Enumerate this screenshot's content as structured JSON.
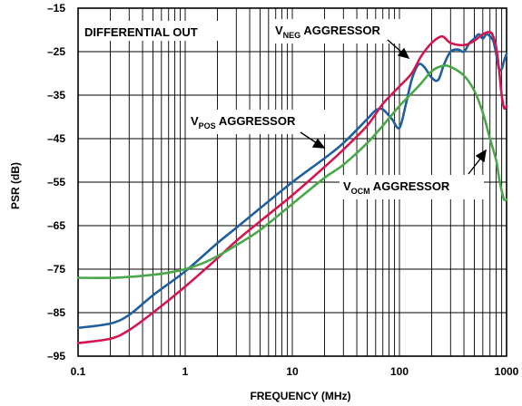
{
  "chart_data": {
    "type": "line",
    "xlabel": "FREQUENCY (MHz)",
    "ylabel": "PSR (dB)",
    "x_scale": "log",
    "xlim": [
      0.1,
      1000
    ],
    "ylim": [
      -95,
      -15
    ],
    "x_ticks": [
      "0.1",
      "1",
      "10",
      "100",
      "1000"
    ],
    "y_ticks": [
      "–15",
      "–25",
      "–35",
      "–45",
      "–55",
      "–65",
      "–75",
      "–85",
      "–95"
    ],
    "grid": true,
    "annotations": {
      "differential": "DIFFERENTIAL OUT",
      "neg": {
        "main": "V",
        "sub": "NEG",
        "rest": " AGGRESSOR"
      },
      "pos": {
        "main": "V",
        "sub": "POS",
        "rest": " AGGRESSOR"
      },
      "ocm": {
        "main": "V",
        "sub": "OCM",
        "rest": " AGGRESSOR"
      }
    },
    "series": [
      {
        "color": "#1f5fa0",
        "points": [
          [
            0.1,
            -88.5
          ],
          [
            0.2,
            -87.5
          ],
          [
            0.3,
            -85.5
          ],
          [
            0.5,
            -81
          ],
          [
            1,
            -75.5
          ],
          [
            2,
            -69
          ],
          [
            3,
            -65.5
          ],
          [
            5,
            -61
          ],
          [
            10,
            -55
          ],
          [
            20,
            -49.5
          ],
          [
            30,
            -46
          ],
          [
            50,
            -40.5
          ],
          [
            60,
            -38.5
          ],
          [
            70,
            -38.3
          ],
          [
            85,
            -40.5
          ],
          [
            100,
            -42.5
          ],
          [
            115,
            -37
          ],
          [
            130,
            -31.5
          ],
          [
            150,
            -28
          ],
          [
            170,
            -28.5
          ],
          [
            200,
            -31
          ],
          [
            230,
            -31.5
          ],
          [
            260,
            -28
          ],
          [
            300,
            -25
          ],
          [
            350,
            -24.5
          ],
          [
            400,
            -25
          ],
          [
            450,
            -23
          ],
          [
            500,
            -22
          ],
          [
            550,
            -21
          ],
          [
            600,
            -22
          ],
          [
            650,
            -21
          ],
          [
            700,
            -21.5
          ],
          [
            750,
            -22.5
          ],
          [
            800,
            -25.5
          ],
          [
            850,
            -29
          ],
          [
            900,
            -29
          ],
          [
            950,
            -27
          ],
          [
            1000,
            -25.5
          ]
        ]
      },
      {
        "color": "#d2164f",
        "points": [
          [
            0.1,
            -92
          ],
          [
            0.2,
            -91
          ],
          [
            0.3,
            -89
          ],
          [
            0.5,
            -85
          ],
          [
            1,
            -79
          ],
          [
            2,
            -72.5
          ],
          [
            3,
            -68.5
          ],
          [
            5,
            -64
          ],
          [
            10,
            -58
          ],
          [
            20,
            -51.5
          ],
          [
            30,
            -47.5
          ],
          [
            50,
            -42
          ],
          [
            70,
            -37
          ],
          [
            100,
            -33
          ],
          [
            130,
            -30
          ],
          [
            160,
            -26
          ],
          [
            200,
            -23
          ],
          [
            250,
            -21.5
          ],
          [
            300,
            -23
          ],
          [
            400,
            -23.5
          ],
          [
            500,
            -22.5
          ],
          [
            600,
            -21
          ],
          [
            700,
            -20.5
          ],
          [
            750,
            -21.5
          ],
          [
            800,
            -24
          ],
          [
            850,
            -29
          ],
          [
            900,
            -35
          ],
          [
            950,
            -38
          ],
          [
            1000,
            -37.5
          ]
        ]
      },
      {
        "color": "#4aa84a",
        "points": [
          [
            0.1,
            -77
          ],
          [
            0.2,
            -77
          ],
          [
            0.3,
            -76.8
          ],
          [
            0.5,
            -76.3
          ],
          [
            0.7,
            -75.8
          ],
          [
            1,
            -75
          ],
          [
            1.5,
            -73.5
          ],
          [
            2,
            -72
          ],
          [
            3,
            -69.5
          ],
          [
            5,
            -66
          ],
          [
            10,
            -60
          ],
          [
            20,
            -54
          ],
          [
            30,
            -51
          ],
          [
            50,
            -46
          ],
          [
            70,
            -42
          ],
          [
            100,
            -37.5
          ],
          [
            150,
            -33
          ],
          [
            200,
            -29.5
          ],
          [
            250,
            -28.3
          ],
          [
            300,
            -28.5
          ],
          [
            400,
            -30.5
          ],
          [
            500,
            -34
          ],
          [
            600,
            -39
          ],
          [
            700,
            -45
          ],
          [
            800,
            -50
          ],
          [
            850,
            -54
          ],
          [
            900,
            -57
          ],
          [
            950,
            -59
          ],
          [
            1000,
            -59
          ]
        ]
      }
    ]
  }
}
